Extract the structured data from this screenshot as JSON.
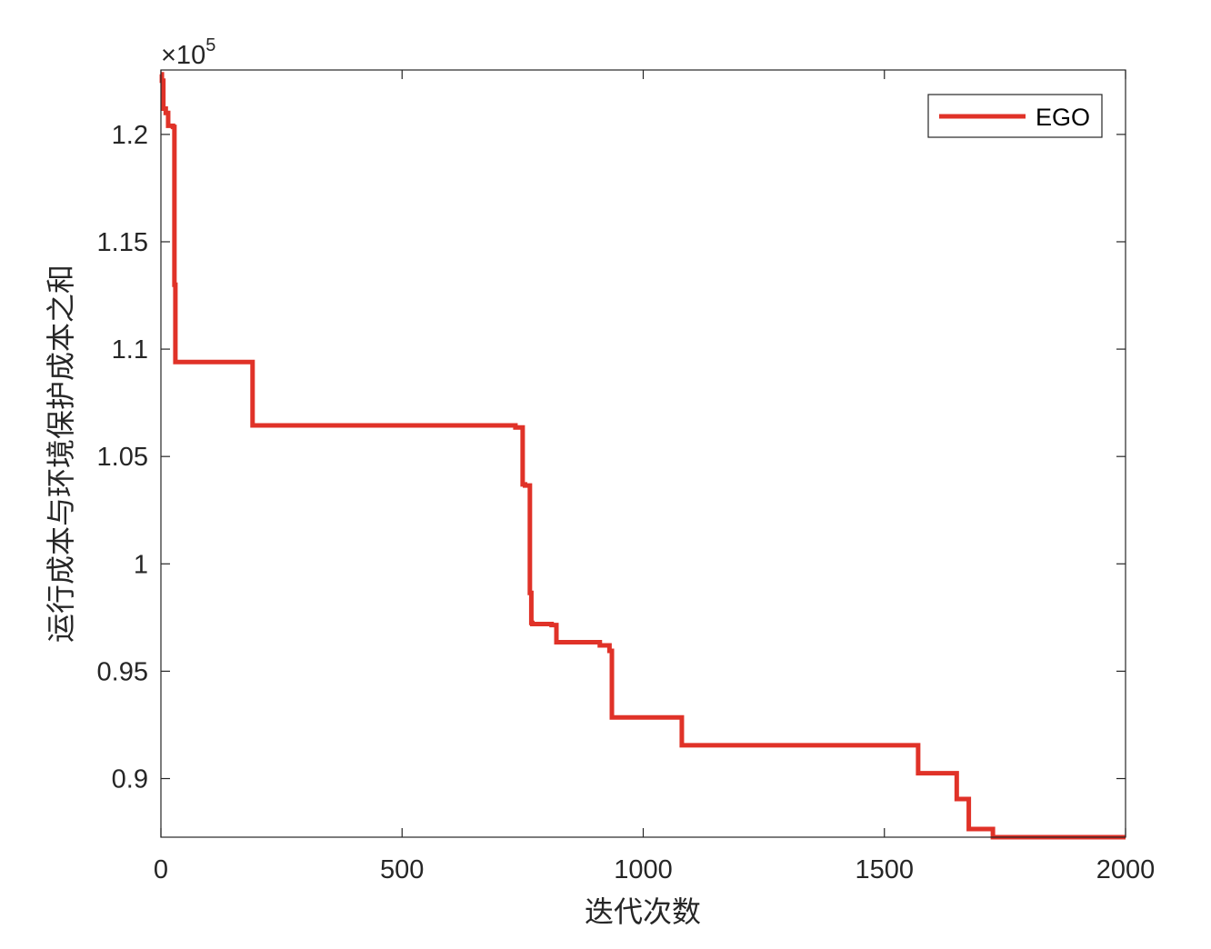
{
  "chart_data": {
    "type": "line",
    "title": "",
    "xlabel": "迭代次数",
    "ylabel": "运行成本与环境保护成本之和",
    "y_exponent_label": "×10",
    "y_exponent_power": "5",
    "xlim": [
      0,
      2000
    ],
    "ylim": [
      0.8727,
      1.23
    ],
    "x_ticks": [
      0,
      500,
      1000,
      1500,
      2000
    ],
    "x_tick_labels": [
      "0",
      "500",
      "1000",
      "1500",
      "2000"
    ],
    "y_ticks": [
      0.9,
      0.95,
      1.0,
      1.05,
      1.1,
      1.15,
      1.2
    ],
    "y_tick_labels": [
      "0.9",
      "0.95",
      "1",
      "1.05",
      "1.1",
      "1.15",
      "1.2"
    ],
    "grid": false,
    "box": true,
    "legend_position": "top-right",
    "series": [
      {
        "name": "EGO",
        "color": "#e03228",
        "step": true,
        "x": [
          0,
          2,
          5,
          10,
          15,
          25,
          28,
          30,
          190,
          735,
          750,
          755,
          765,
          768,
          770,
          810,
          820,
          910,
          930,
          935,
          1080,
          1085,
          1570,
          1575,
          1650,
          1655,
          1675,
          1680,
          1725,
          1730,
          2000
        ],
        "y": [
          1.228,
          1.225,
          1.212,
          1.21,
          1.204,
          1.2035,
          1.13,
          1.094,
          1.0645,
          1.0635,
          1.037,
          1.0365,
          0.9865,
          0.9725,
          0.972,
          0.9715,
          0.9635,
          0.962,
          0.9595,
          0.9285,
          0.9155,
          0.9155,
          0.9025,
          0.9025,
          0.8905,
          0.8905,
          0.8765,
          0.8765,
          0.8727,
          0.8727,
          0.8727
        ]
      }
    ]
  }
}
